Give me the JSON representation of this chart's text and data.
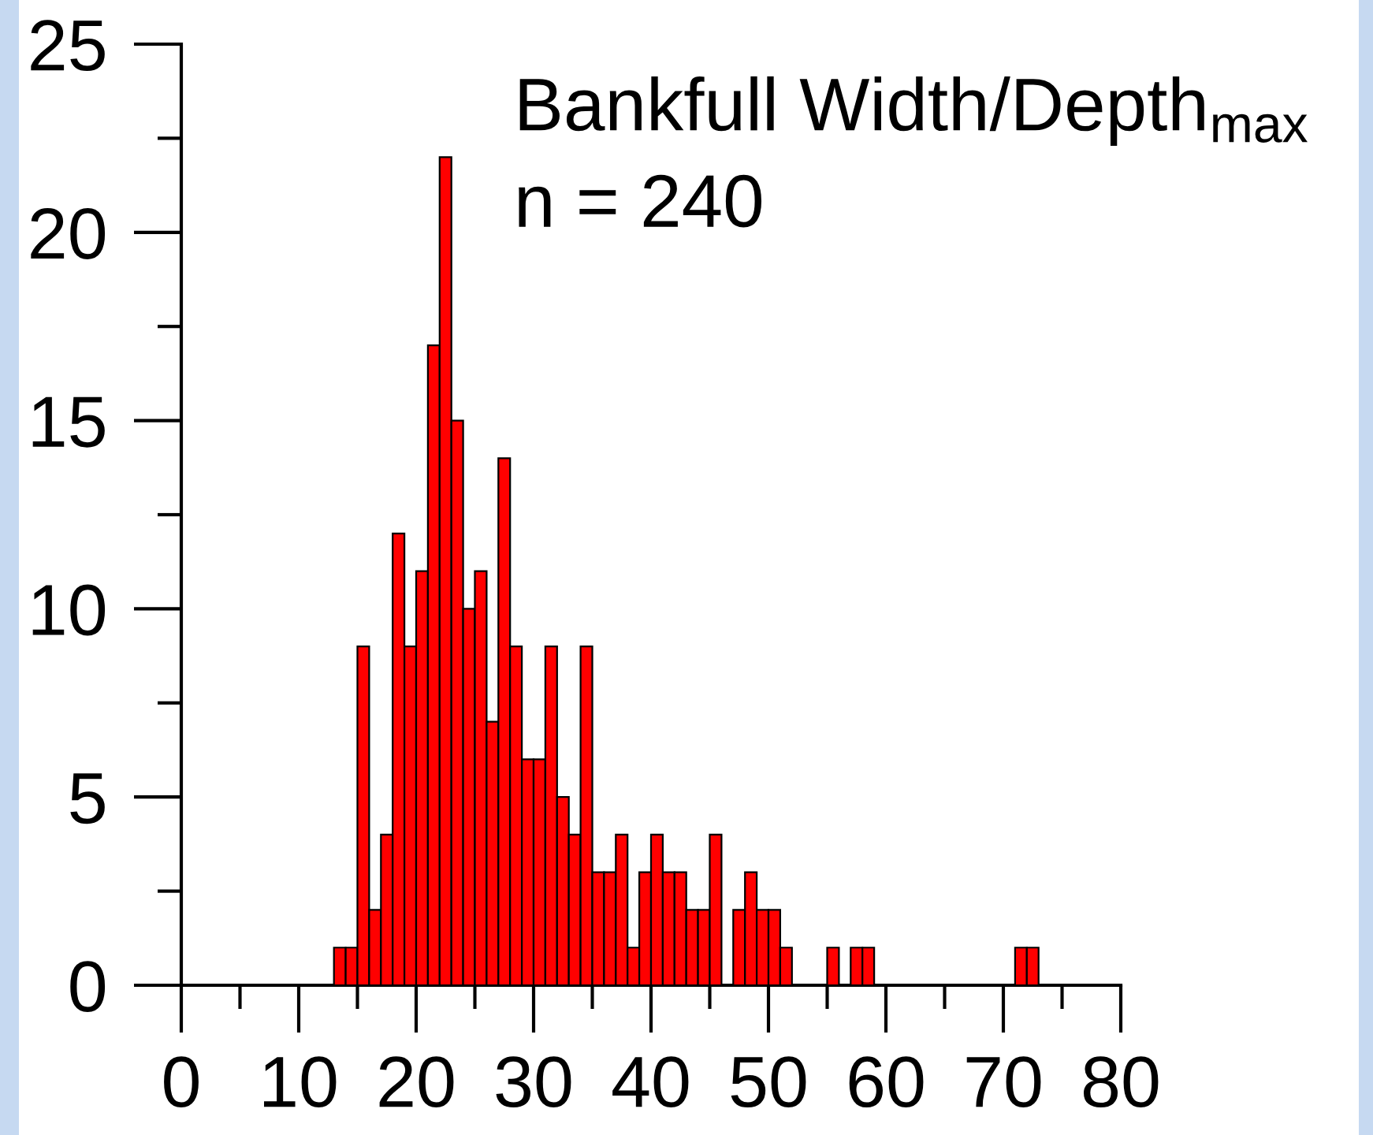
{
  "chart_data": {
    "type": "histogram",
    "title": "Bankfull Width/Depth$_{max}$",
    "annotations": [
      "n = 240"
    ],
    "bins": [
      13,
      14,
      15,
      16,
      17,
      18,
      19,
      20,
      21,
      22,
      23,
      24,
      25,
      26,
      27,
      28,
      29,
      30,
      31,
      32,
      33,
      34,
      35,
      36,
      37,
      38,
      39,
      40,
      41,
      42,
      43,
      44,
      45,
      46,
      47,
      48,
      49,
      50,
      51,
      52,
      53,
      54,
      55,
      56,
      57,
      58,
      59,
      60,
      61,
      62,
      63,
      64,
      65,
      66,
      67,
      68,
      69,
      70,
      71,
      72,
      73
    ],
    "values": [
      1,
      1,
      9,
      2,
      4,
      12,
      9,
      11,
      17,
      22,
      15,
      10,
      11,
      7,
      14,
      9,
      6,
      6,
      9,
      5,
      4,
      9,
      3,
      3,
      4,
      1,
      3,
      4,
      3,
      3,
      2,
      2,
      4,
      0,
      2,
      3,
      2,
      2,
      1,
      0,
      0,
      0,
      1,
      0,
      1,
      1,
      0,
      0,
      0,
      0,
      0,
      0,
      0,
      0,
      0,
      0,
      0,
      0,
      1,
      1
    ],
    "color": "#ff0000",
    "xlim": [
      0,
      80
    ],
    "ylim": [
      0,
      25
    ],
    "xticks": [
      0,
      {
        "value": 5,
        "label": null
      },
      10,
      {
        "value": 15,
        "label": null
      },
      20,
      {
        "value": 25,
        "label": null
      },
      30,
      {
        "value": 35,
        "label": null
      },
      40,
      {
        "value": 45,
        "label": null
      },
      50,
      {
        "value": 55,
        "label": null
      },
      60,
      {
        "value": 65,
        "label": null
      },
      70,
      {
        "value": 75,
        "label": null
      },
      80
    ],
    "yticks": [
      0,
      {
        "value": 2.5,
        "label": null
      },
      5,
      {
        "value": 7.5,
        "label": null
      },
      10,
      {
        "value": 12.5,
        "label": null
      },
      15,
      {
        "value": 17.5,
        "label": null
      },
      20,
      {
        "value": 22.5,
        "label": null
      },
      25
    ]
  }
}
